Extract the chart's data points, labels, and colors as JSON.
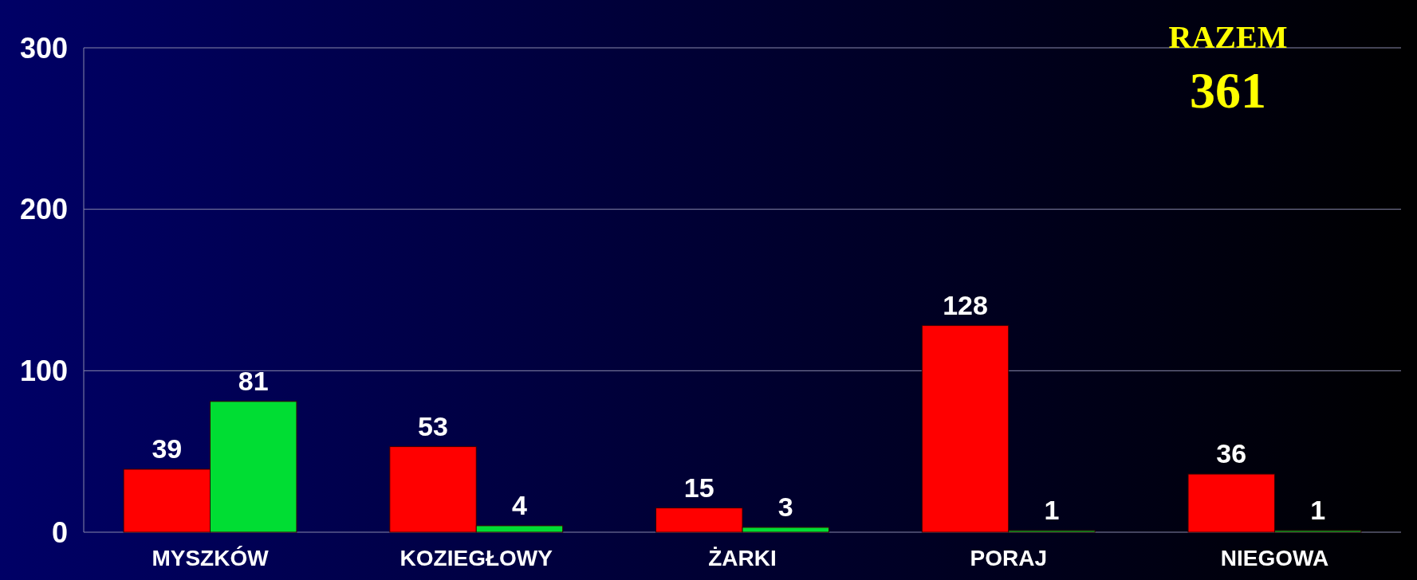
{
  "chart_data": {
    "type": "bar",
    "categories": [
      "MYSZKÓW",
      "KOZIEGŁOWY",
      "ŻARKI",
      "PORAJ",
      "NIEGOWA"
    ],
    "series": [
      {
        "color": "#ff0000",
        "values": [
          39,
          53,
          15,
          128,
          36
        ]
      },
      {
        "color": "#00dd33",
        "values": [
          81,
          4,
          3,
          1,
          1
        ]
      }
    ],
    "ylim": [
      0,
      300
    ],
    "yticks": [
      0,
      100,
      200,
      300
    ],
    "grid": "y",
    "data_labels": true,
    "annotations": [
      "RAZEM",
      "361"
    ]
  }
}
